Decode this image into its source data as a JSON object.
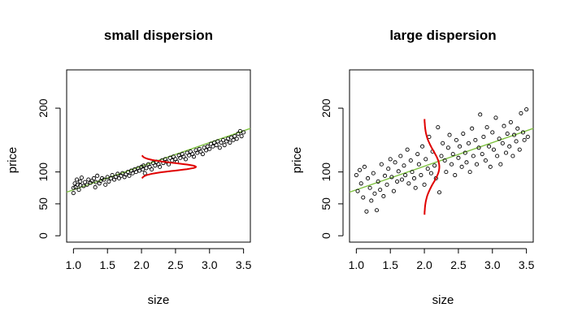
{
  "chart_data": [
    {
      "type": "scatter",
      "title": "small dispersion",
      "xlabel": "size",
      "ylabel": "price",
      "xlim": [
        0.9,
        3.6
      ],
      "ylim": [
        -10,
        260
      ],
      "xticks": [
        1.0,
        1.5,
        2.0,
        2.5,
        3.0,
        3.5
      ],
      "yticks": [
        0,
        50,
        100,
        200
      ],
      "grid": false,
      "regression_line": {
        "intercept": 35,
        "slope": 37,
        "x": [
          0.9,
          3.6
        ],
        "color": "#7fc241"
      },
      "density_curve": {
        "x_center": 2.0,
        "y_center": 108,
        "sd": 6,
        "peak_width": 0.8,
        "color": "#e00000"
      },
      "series": [
        {
          "points": [
            [
              1.0,
              67
            ],
            [
              1.0,
              75
            ],
            [
              1.02,
              82
            ],
            [
              1.03,
              76
            ],
            [
              1.05,
              88
            ],
            [
              1.06,
              80
            ],
            [
              1.08,
              72
            ],
            [
              1.1,
              85
            ],
            [
              1.1,
              79
            ],
            [
              1.12,
              91
            ],
            [
              1.15,
              78
            ],
            [
              1.17,
              84
            ],
            [
              1.2,
              80
            ],
            [
              1.22,
              88
            ],
            [
              1.25,
              83
            ],
            [
              1.27,
              86
            ],
            [
              1.3,
              90
            ],
            [
              1.32,
              76
            ],
            [
              1.33,
              84
            ],
            [
              1.35,
              94
            ],
            [
              1.38,
              82
            ],
            [
              1.4,
              86
            ],
            [
              1.42,
              90
            ],
            [
              1.45,
              88
            ],
            [
              1.47,
              80
            ],
            [
              1.5,
              92
            ],
            [
              1.52,
              85
            ],
            [
              1.55,
              90
            ],
            [
              1.57,
              95
            ],
            [
              1.6,
              88
            ],
            [
              1.62,
              92
            ],
            [
              1.65,
              97
            ],
            [
              1.67,
              90
            ],
            [
              1.7,
              94
            ],
            [
              1.72,
              98
            ],
            [
              1.75,
              92
            ],
            [
              1.77,
              96
            ],
            [
              1.8,
              100
            ],
            [
              1.82,
              94
            ],
            [
              1.85,
              102
            ],
            [
              1.87,
              98
            ],
            [
              1.9,
              104
            ],
            [
              1.92,
              100
            ],
            [
              1.95,
              106
            ],
            [
              1.97,
              102
            ],
            [
              2.0,
              108
            ],
            [
              2.02,
              104
            ],
            [
              2.03,
              110
            ],
            [
              2.05,
              98
            ],
            [
              2.07,
              106
            ],
            [
              2.1,
              112
            ],
            [
              2.12,
              108
            ],
            [
              2.15,
              104
            ],
            [
              2.17,
              114
            ],
            [
              2.2,
              110
            ],
            [
              2.22,
              116
            ],
            [
              2.25,
              112
            ],
            [
              2.27,
              108
            ],
            [
              2.3,
              118
            ],
            [
              2.32,
              114
            ],
            [
              2.35,
              120
            ],
            [
              2.37,
              116
            ],
            [
              2.4,
              112
            ],
            [
              2.42,
              122
            ],
            [
              2.45,
              118
            ],
            [
              2.47,
              124
            ],
            [
              2.5,
              120
            ],
            [
              2.52,
              116
            ],
            [
              2.55,
              126
            ],
            [
              2.57,
              122
            ],
            [
              2.6,
              128
            ],
            [
              2.62,
              124
            ],
            [
              2.65,
              120
            ],
            [
              2.67,
              130
            ],
            [
              2.7,
              126
            ],
            [
              2.72,
              132
            ],
            [
              2.75,
              128
            ],
            [
              2.77,
              124
            ],
            [
              2.8,
              134
            ],
            [
              2.82,
              130
            ],
            [
              2.85,
              136
            ],
            [
              2.87,
              132
            ],
            [
              2.9,
              128
            ],
            [
              2.92,
              138
            ],
            [
              2.95,
              134
            ],
            [
              2.97,
              140
            ],
            [
              3.0,
              136
            ],
            [
              3.02,
              144
            ],
            [
              3.05,
              140
            ],
            [
              3.07,
              146
            ],
            [
              3.1,
              142
            ],
            [
              3.12,
              148
            ],
            [
              3.15,
              138
            ],
            [
              3.17,
              146
            ],
            [
              3.2,
              150
            ],
            [
              3.22,
              142
            ],
            [
              3.25,
              148
            ],
            [
              3.27,
              152
            ],
            [
              3.3,
              146
            ],
            [
              3.32,
              154
            ],
            [
              3.35,
              150
            ],
            [
              3.37,
              156
            ],
            [
              3.4,
              152
            ],
            [
              3.42,
              160
            ],
            [
              3.45,
              164
            ],
            [
              3.47,
              156
            ],
            [
              3.5,
              162
            ]
          ]
        }
      ]
    },
    {
      "type": "scatter",
      "title": "large dispersion",
      "xlabel": "size",
      "ylabel": "price",
      "xlim": [
        0.9,
        3.6
      ],
      "ylim": [
        -10,
        260
      ],
      "xticks": [
        1.0,
        1.5,
        2.0,
        2.5,
        3.0,
        3.5
      ],
      "yticks": [
        0,
        50,
        100,
        200
      ],
      "grid": false,
      "regression_line": {
        "intercept": 35,
        "slope": 37,
        "x": [
          0.9,
          3.6
        ],
        "color": "#7fc241"
      },
      "density_curve": {
        "x_center": 2.0,
        "y_center": 108,
        "sd": 25,
        "peak_width": 0.22,
        "color": "#e00000"
      },
      "series": [
        {
          "points": [
            [
              1.0,
              95
            ],
            [
              1.02,
              70
            ],
            [
              1.05,
              103
            ],
            [
              1.07,
              82
            ],
            [
              1.1,
              60
            ],
            [
              1.12,
              108
            ],
            [
              1.15,
              38
            ],
            [
              1.17,
              90
            ],
            [
              1.2,
              75
            ],
            [
              1.22,
              55
            ],
            [
              1.25,
              98
            ],
            [
              1.27,
              66
            ],
            [
              1.3,
              40
            ],
            [
              1.32,
              85
            ],
            [
              1.35,
              72
            ],
            [
              1.37,
              112
            ],
            [
              1.4,
              62
            ],
            [
              1.42,
              94
            ],
            [
              1.45,
              80
            ],
            [
              1.47,
              105
            ],
            [
              1.5,
              120
            ],
            [
              1.52,
              92
            ],
            [
              1.55,
              70
            ],
            [
              1.57,
              115
            ],
            [
              1.6,
              85
            ],
            [
              1.62,
              101
            ],
            [
              1.65,
              125
            ],
            [
              1.67,
              88
            ],
            [
              1.7,
              110
            ],
            [
              1.72,
              95
            ],
            [
              1.75,
              135
            ],
            [
              1.77,
              82
            ],
            [
              1.8,
              118
            ],
            [
              1.82,
              100
            ],
            [
              1.85,
              90
            ],
            [
              1.87,
              75
            ],
            [
              1.9,
              128
            ],
            [
              1.92,
              112
            ],
            [
              1.95,
              95
            ],
            [
              1.97,
              140
            ],
            [
              2.0,
              80
            ],
            [
              2.02,
              120
            ],
            [
              2.05,
              105
            ],
            [
              2.07,
              155
            ],
            [
              2.1,
              98
            ],
            [
              2.12,
              132
            ],
            [
              2.15,
              110
            ],
            [
              2.17,
              90
            ],
            [
              2.2,
              170
            ],
            [
              2.22,
              68
            ],
            [
              2.25,
              125
            ],
            [
              2.27,
              145
            ],
            [
              2.3,
              118
            ],
            [
              2.32,
              100
            ],
            [
              2.35,
              138
            ],
            [
              2.37,
              158
            ],
            [
              2.4,
              112
            ],
            [
              2.42,
              128
            ],
            [
              2.45,
              95
            ],
            [
              2.47,
              150
            ],
            [
              2.5,
              122
            ],
            [
              2.52,
              140
            ],
            [
              2.55,
              108
            ],
            [
              2.57,
              160
            ],
            [
              2.6,
              130
            ],
            [
              2.62,
              115
            ],
            [
              2.65,
              145
            ],
            [
              2.67,
              100
            ],
            [
              2.7,
              168
            ],
            [
              2.72,
              125
            ],
            [
              2.75,
              150
            ],
            [
              2.77,
              112
            ],
            [
              2.8,
              138
            ],
            [
              2.82,
              190
            ],
            [
              2.85,
              128
            ],
            [
              2.87,
              155
            ],
            [
              2.9,
              118
            ],
            [
              2.92,
              170
            ],
            [
              2.95,
              140
            ],
            [
              2.97,
              108
            ],
            [
              3.0,
              162
            ],
            [
              3.02,
              135
            ],
            [
              3.05,
              185
            ],
            [
              3.07,
              125
            ],
            [
              3.1,
              152
            ],
            [
              3.12,
              112
            ],
            [
              3.15,
              145
            ],
            [
              3.17,
              172
            ],
            [
              3.2,
              130
            ],
            [
              3.22,
              160
            ],
            [
              3.25,
              140
            ],
            [
              3.27,
              178
            ],
            [
              3.3,
              125
            ],
            [
              3.32,
              158
            ],
            [
              3.35,
              148
            ],
            [
              3.37,
              168
            ],
            [
              3.4,
              135
            ],
            [
              3.42,
              192
            ],
            [
              3.45,
              162
            ],
            [
              3.47,
              150
            ],
            [
              3.5,
              198
            ],
            [
              3.52,
              155
            ]
          ]
        }
      ]
    }
  ]
}
